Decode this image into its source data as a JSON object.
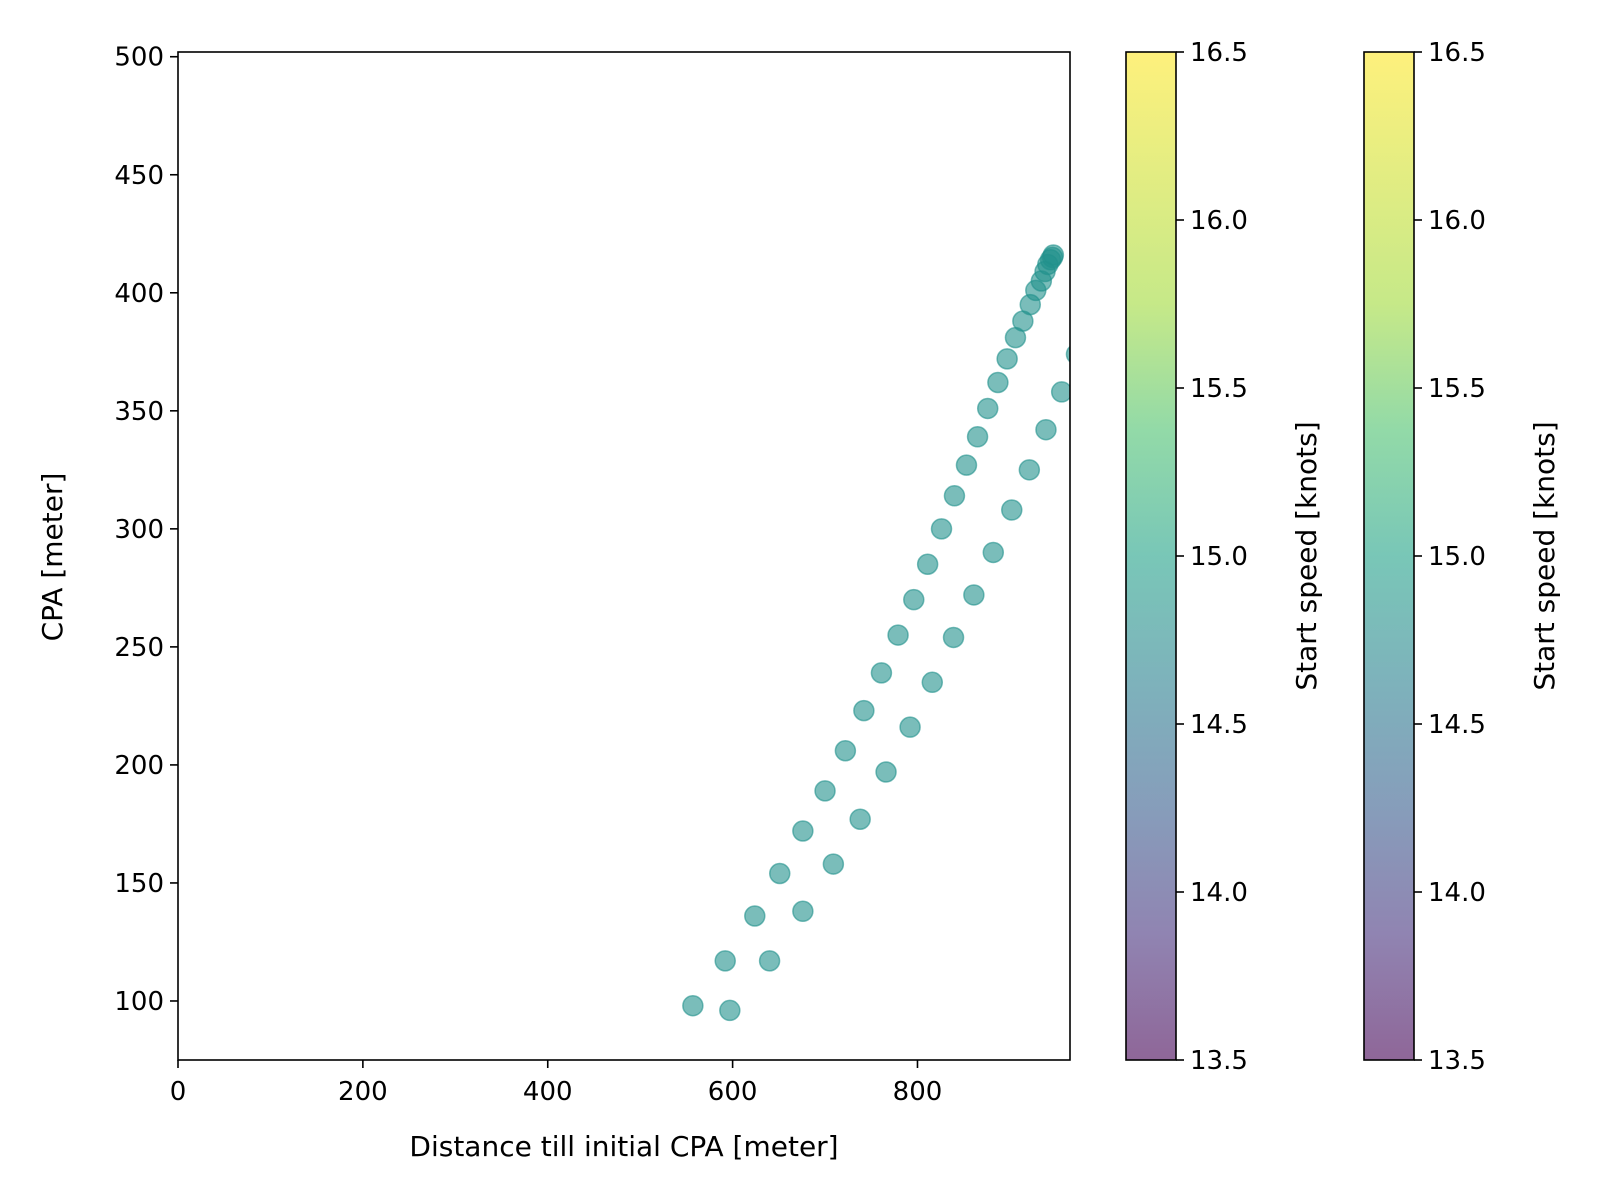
{
  "chart_data": {
    "type": "scatter",
    "xlabel": "Distance till initial CPA [meter]",
    "ylabel": "CPA [meter]",
    "xlim": [
      0,
      965
    ],
    "ylim": [
      75,
      502
    ],
    "xticks": [
      0,
      200,
      400,
      600,
      800
    ],
    "yticks": [
      100,
      150,
      200,
      250,
      300,
      350,
      400,
      450,
      500
    ],
    "grid": false,
    "point_color": "#21918c",
    "point_alpha": 0.6,
    "series": [
      {
        "values": [
          {
            "x": 557,
            "y": 98
          },
          {
            "x": 592,
            "y": 117
          },
          {
            "x": 624,
            "y": 136
          },
          {
            "x": 651,
            "y": 154
          },
          {
            "x": 676,
            "y": 172
          },
          {
            "x": 700,
            "y": 189
          },
          {
            "x": 722,
            "y": 206
          },
          {
            "x": 742,
            "y": 223
          },
          {
            "x": 761,
            "y": 239
          },
          {
            "x": 779,
            "y": 255
          },
          {
            "x": 796,
            "y": 270
          },
          {
            "x": 811,
            "y": 285
          },
          {
            "x": 826,
            "y": 300
          },
          {
            "x": 840,
            "y": 314
          },
          {
            "x": 853,
            "y": 327
          },
          {
            "x": 865,
            "y": 339
          },
          {
            "x": 876,
            "y": 351
          },
          {
            "x": 887,
            "y": 362
          },
          {
            "x": 897,
            "y": 372
          },
          {
            "x": 906,
            "y": 381
          },
          {
            "x": 914,
            "y": 388
          },
          {
            "x": 922,
            "y": 395
          },
          {
            "x": 928,
            "y": 401
          },
          {
            "x": 934,
            "y": 405
          },
          {
            "x": 938,
            "y": 409
          },
          {
            "x": 941,
            "y": 412
          },
          {
            "x": 944,
            "y": 414
          },
          {
            "x": 946,
            "y": 415
          },
          {
            "x": 947,
            "y": 416
          }
        ]
      },
      {
        "values": [
          {
            "x": 597,
            "y": 96
          },
          {
            "x": 640,
            "y": 117
          },
          {
            "x": 676,
            "y": 138
          },
          {
            "x": 709,
            "y": 158
          },
          {
            "x": 738,
            "y": 177
          },
          {
            "x": 766,
            "y": 197
          },
          {
            "x": 792,
            "y": 216
          },
          {
            "x": 816,
            "y": 235
          },
          {
            "x": 839,
            "y": 254
          },
          {
            "x": 861,
            "y": 272
          },
          {
            "x": 882,
            "y": 290
          },
          {
            "x": 902,
            "y": 308
          },
          {
            "x": 921,
            "y": 325
          },
          {
            "x": 939,
            "y": 342
          },
          {
            "x": 956,
            "y": 358
          },
          {
            "x": 972,
            "y": 374
          }
        ]
      }
    ],
    "colorbars": [
      {
        "label": "Start speed [knots]",
        "range": [
          13.5,
          16.5
        ],
        "ticks": [
          13.5,
          14.0,
          14.5,
          15.0,
          15.5,
          16.0,
          16.5
        ],
        "tick_labels": [
          "13.5",
          "14.0",
          "14.5",
          "15.0",
          "15.5",
          "16.0",
          "16.5"
        ],
        "colormap": "viridis",
        "alpha": 0.6
      },
      {
        "label": "Start speed [knots]",
        "range": [
          13.5,
          16.5
        ],
        "ticks": [
          13.5,
          14.0,
          14.5,
          15.0,
          15.5,
          16.0,
          16.5
        ],
        "tick_labels": [
          "13.5",
          "14.0",
          "14.5",
          "15.0",
          "15.5",
          "16.0",
          "16.5"
        ],
        "colormap": "viridis",
        "alpha": 0.6
      }
    ]
  }
}
